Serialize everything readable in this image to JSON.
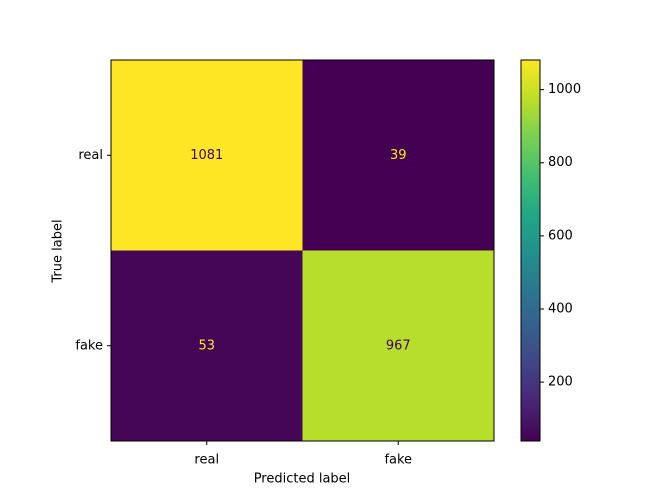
{
  "chart_data": {
    "type": "heatmap",
    "xlabel": "Predicted label",
    "ylabel": "True label",
    "x_categories": [
      "real",
      "fake"
    ],
    "y_categories": [
      "real",
      "fake"
    ],
    "values": [
      [
        1081,
        39
      ],
      [
        53,
        967
      ]
    ],
    "colormap": "viridis",
    "zlim": [
      39,
      1081
    ],
    "zticks": [
      200,
      400,
      600,
      800,
      1000
    ]
  }
}
